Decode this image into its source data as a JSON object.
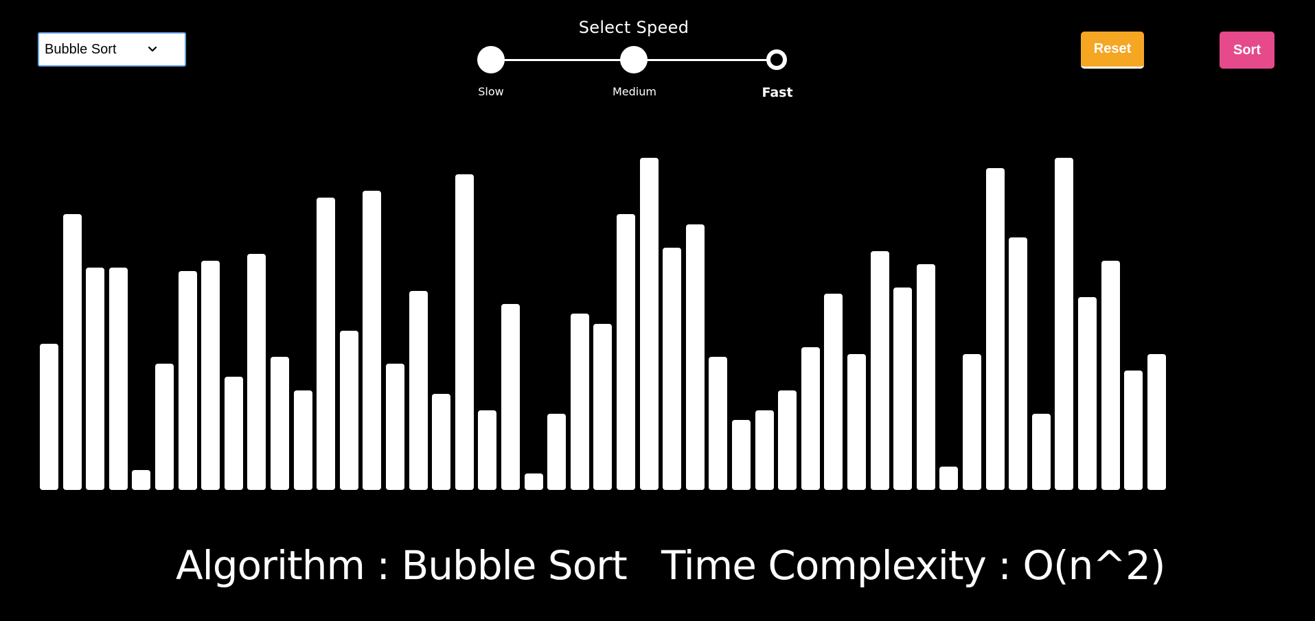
{
  "algorithm_select": {
    "selected": "Bubble Sort",
    "icon": "chevron-down-icon"
  },
  "speed": {
    "title": "Select Speed",
    "options": [
      {
        "label": "Slow",
        "selected": false
      },
      {
        "label": "Medium",
        "selected": false
      },
      {
        "label": "Fast",
        "selected": true
      }
    ]
  },
  "buttons": {
    "reset_label": "Reset",
    "sort_label": "Sort"
  },
  "colors": {
    "background": "#000000",
    "bar": "#ffffff",
    "reset": "#f5a623",
    "sort": "#e64a8b",
    "select_border": "#6aa5e8"
  },
  "bars": {
    "max_value": 100,
    "values": [
      44,
      83,
      67,
      67,
      6,
      38,
      66,
      69,
      34,
      71,
      40,
      30,
      88,
      48,
      90,
      38,
      60,
      29,
      95,
      24,
      56,
      5,
      23,
      53,
      50,
      83,
      100,
      73,
      80,
      40,
      21,
      24,
      30,
      43,
      59,
      41,
      72,
      61,
      68,
      7,
      41,
      97,
      76,
      23,
      100,
      58,
      69,
      36,
      41
    ]
  },
  "footer": {
    "algorithm_text": "Algorithm : Bubble Sort",
    "complexity_text": "Time Complexity : O(n^2)"
  }
}
